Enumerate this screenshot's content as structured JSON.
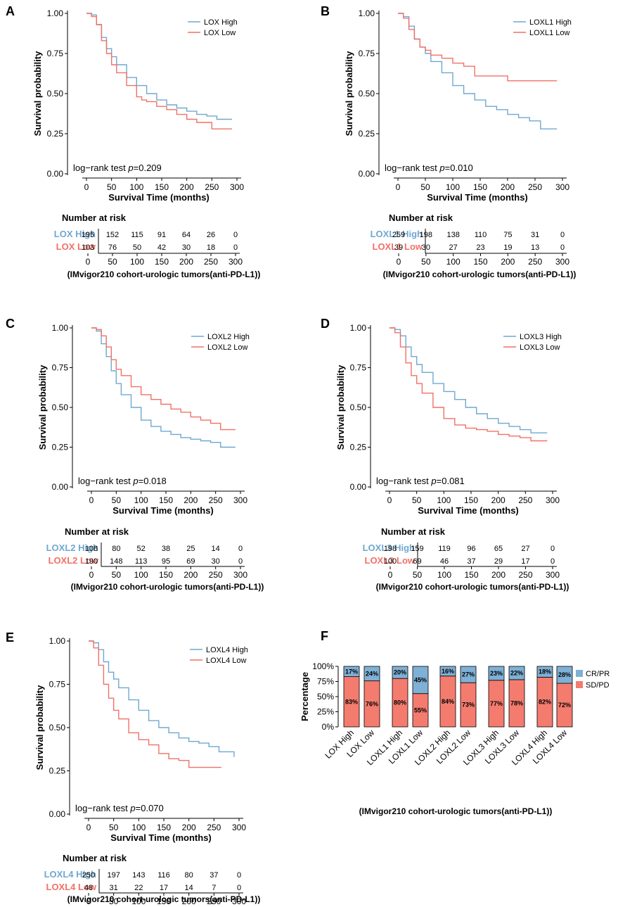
{
  "colors": {
    "high": "#6fa8d0",
    "low": "#f07167",
    "cr": "#7fb0d6",
    "sd": "#f47c6f"
  },
  "km_common": {
    "ylabel": "Survival probability",
    "xlabel": "Survival Time (months)",
    "yticks": [
      "0.00",
      "0.25",
      "0.50",
      "0.75",
      "1.00"
    ],
    "xticks": [
      "0",
      "50",
      "100",
      "150",
      "200",
      "250",
      "300"
    ],
    "risk_title": "Number at risk",
    "caption": "(IMvigor210 cohort-urologic tumors(anti-PD-L1))"
  },
  "chart_data": [
    {
      "type": "line",
      "panel": "A",
      "pval_prefix": "log−rank test ",
      "pval_p": "p",
      "pval_value": "=0.209",
      "xlim": [
        0,
        300
      ],
      "ylim": [
        0,
        1
      ],
      "series": [
        {
          "name": "LOX High",
          "risk_label": "LOX High",
          "risk": [
            "195",
            "152",
            "115",
            "91",
            "64",
            "26",
            "0"
          ],
          "x": [
            0,
            10,
            20,
            30,
            40,
            50,
            60,
            80,
            100,
            120,
            140,
            160,
            180,
            200,
            220,
            240,
            260,
            290
          ],
          "y": [
            1.0,
            0.99,
            0.93,
            0.85,
            0.78,
            0.73,
            0.68,
            0.6,
            0.55,
            0.5,
            0.46,
            0.43,
            0.41,
            0.39,
            0.37,
            0.36,
            0.34,
            0.34
          ]
        },
        {
          "name": "LOX Low",
          "risk_label": "LOX Low",
          "risk": [
            "103",
            "76",
            "50",
            "42",
            "30",
            "18",
            "0"
          ],
          "x": [
            0,
            10,
            20,
            30,
            40,
            50,
            60,
            80,
            100,
            110,
            120,
            140,
            160,
            180,
            200,
            220,
            240,
            250,
            290
          ],
          "y": [
            1.0,
            0.98,
            0.93,
            0.83,
            0.75,
            0.68,
            0.63,
            0.55,
            0.48,
            0.46,
            0.45,
            0.42,
            0.4,
            0.37,
            0.34,
            0.32,
            0.32,
            0.28,
            0.28
          ]
        }
      ]
    },
    {
      "type": "line",
      "panel": "B",
      "pval_prefix": "log−rank test ",
      "pval_p": "p",
      "pval_value": "=0.010",
      "xlim": [
        0,
        300
      ],
      "ylim": [
        0,
        1
      ],
      "series": [
        {
          "name": "LOXL1 High",
          "risk_label": "LOXL1 High",
          "risk": [
            "259",
            "198",
            "138",
            "110",
            "75",
            "31",
            "0"
          ],
          "x": [
            0,
            10,
            20,
            30,
            40,
            50,
            60,
            80,
            100,
            120,
            140,
            160,
            180,
            200,
            220,
            240,
            260,
            290
          ],
          "y": [
            1.0,
            0.98,
            0.92,
            0.84,
            0.79,
            0.75,
            0.7,
            0.63,
            0.55,
            0.5,
            0.46,
            0.42,
            0.4,
            0.37,
            0.35,
            0.33,
            0.28,
            0.28
          ]
        },
        {
          "name": "LOXL1 Low",
          "risk_label": "LOXL1 Low",
          "risk": [
            "39",
            "30",
            "27",
            "23",
            "19",
            "13",
            "0"
          ],
          "x": [
            0,
            10,
            20,
            30,
            40,
            50,
            60,
            80,
            100,
            120,
            140,
            160,
            180,
            200,
            220,
            240,
            260,
            290
          ],
          "y": [
            1.0,
            0.97,
            0.9,
            0.84,
            0.79,
            0.77,
            0.74,
            0.72,
            0.69,
            0.67,
            0.61,
            0.61,
            0.61,
            0.58,
            0.58,
            0.58,
            0.58,
            0.58
          ]
        }
      ]
    },
    {
      "type": "line",
      "panel": "C",
      "pval_prefix": "log−rank test ",
      "pval_p": "p",
      "pval_value": "=0.018",
      "xlim": [
        0,
        300
      ],
      "ylim": [
        0,
        1
      ],
      "series": [
        {
          "name": "LOXL2 High",
          "risk_label": "LOXL2 High",
          "risk": [
            "108",
            "80",
            "52",
            "38",
            "25",
            "14",
            "0"
          ],
          "x": [
            0,
            10,
            20,
            30,
            40,
            50,
            60,
            80,
            100,
            120,
            140,
            160,
            180,
            200,
            220,
            240,
            260,
            290
          ],
          "y": [
            1.0,
            0.98,
            0.9,
            0.82,
            0.73,
            0.65,
            0.58,
            0.5,
            0.42,
            0.38,
            0.35,
            0.33,
            0.31,
            0.3,
            0.29,
            0.28,
            0.25,
            0.25
          ]
        },
        {
          "name": "LOXL2 Low",
          "risk_label": "LOXL2 Low",
          "risk": [
            "190",
            "148",
            "113",
            "95",
            "69",
            "30",
            "0"
          ],
          "x": [
            0,
            10,
            20,
            30,
            40,
            50,
            60,
            80,
            100,
            120,
            140,
            160,
            180,
            200,
            220,
            240,
            260,
            290
          ],
          "y": [
            1.0,
            0.99,
            0.95,
            0.88,
            0.8,
            0.74,
            0.7,
            0.63,
            0.58,
            0.55,
            0.52,
            0.49,
            0.47,
            0.44,
            0.42,
            0.4,
            0.36,
            0.36
          ]
        }
      ]
    },
    {
      "type": "line",
      "panel": "D",
      "pval_prefix": "log−rank test ",
      "pval_p": "p",
      "pval_value": "=0.081",
      "xlim": [
        0,
        300
      ],
      "ylim": [
        0,
        1
      ],
      "series": [
        {
          "name": "LOXL3 High",
          "risk_label": "LOXL3 High",
          "risk": [
            "198",
            "159",
            "119",
            "96",
            "65",
            "27",
            "0"
          ],
          "x": [
            0,
            10,
            20,
            30,
            40,
            50,
            60,
            80,
            100,
            120,
            140,
            160,
            180,
            200,
            220,
            240,
            260,
            290
          ],
          "y": [
            1.0,
            0.99,
            0.95,
            0.88,
            0.82,
            0.77,
            0.72,
            0.65,
            0.6,
            0.55,
            0.5,
            0.46,
            0.43,
            0.4,
            0.38,
            0.36,
            0.34,
            0.34
          ]
        },
        {
          "name": "LOXL3 Low",
          "risk_label": "LOXL3 Low",
          "risk": [
            "100",
            "69",
            "46",
            "37",
            "29",
            "17",
            "0"
          ],
          "x": [
            0,
            10,
            20,
            30,
            40,
            50,
            60,
            80,
            100,
            120,
            140,
            160,
            180,
            200,
            220,
            240,
            260,
            290
          ],
          "y": [
            1.0,
            0.97,
            0.88,
            0.78,
            0.7,
            0.65,
            0.59,
            0.5,
            0.43,
            0.39,
            0.37,
            0.36,
            0.35,
            0.33,
            0.32,
            0.31,
            0.29,
            0.29
          ]
        }
      ]
    },
    {
      "type": "line",
      "panel": "E",
      "pval_prefix": "log−rank test ",
      "pval_p": "p",
      "pval_value": "=0.070",
      "xlim": [
        0,
        300
      ],
      "ylim": [
        0,
        1
      ],
      "series": [
        {
          "name": "LOXL4 High",
          "risk_label": "LOXL4 High",
          "risk": [
            "250",
            "197",
            "143",
            "116",
            "80",
            "37",
            "0"
          ],
          "x": [
            0,
            10,
            20,
            30,
            40,
            50,
            60,
            80,
            100,
            120,
            140,
            160,
            180,
            200,
            220,
            240,
            260,
            290
          ],
          "y": [
            1.0,
            0.99,
            0.95,
            0.88,
            0.82,
            0.78,
            0.73,
            0.66,
            0.6,
            0.54,
            0.5,
            0.47,
            0.44,
            0.42,
            0.41,
            0.39,
            0.36,
            0.33
          ]
        },
        {
          "name": "LOXL4 Low",
          "risk_label": "LOXL4 Low",
          "risk": [
            "48",
            "31",
            "22",
            "17",
            "14",
            "7",
            "0"
          ],
          "x": [
            0,
            10,
            20,
            30,
            40,
            50,
            60,
            80,
            100,
            120,
            140,
            160,
            180,
            190,
            200,
            220,
            240,
            265
          ],
          "y": [
            1.0,
            0.96,
            0.86,
            0.75,
            0.67,
            0.6,
            0.55,
            0.47,
            0.43,
            0.4,
            0.35,
            0.32,
            0.31,
            0.31,
            0.27,
            0.27,
            0.27,
            0.27
          ]
        }
      ]
    },
    {
      "type": "bar",
      "panel": "F",
      "stacked": true,
      "ylabel": "Percentage",
      "yticks": [
        "0%",
        "25%",
        "50%",
        "75%",
        "100%"
      ],
      "caption": "(IMvigor210 cohort-urologic tumors(anti-PD-L1))",
      "legend": [
        "CR/PR",
        "SD/PD"
      ],
      "categories": [
        "LOX High",
        "LOX Low",
        "LOXL1 High",
        "LOXL1 Low",
        "LOXL2 High",
        "LOXL2 Low",
        "LOXL3 High",
        "LOXL3 Low",
        "LOXL4 High",
        "LOXL4 Low"
      ],
      "series": [
        {
          "name": "SD/PD",
          "values": [
            83,
            76,
            80,
            55,
            84,
            73,
            77,
            78,
            82,
            72
          ],
          "labels": [
            "83%",
            "76%",
            "80%",
            "55%",
            "84%",
            "73%",
            "77%",
            "78%",
            "82%",
            "72%"
          ]
        },
        {
          "name": "CR/PR",
          "values": [
            17,
            24,
            20,
            45,
            16,
            27,
            23,
            22,
            18,
            28
          ],
          "labels": [
            "17%",
            "24%",
            "20%",
            "45%",
            "16%",
            "27%",
            "23%",
            "22%",
            "18%",
            "28%"
          ]
        }
      ]
    }
  ]
}
